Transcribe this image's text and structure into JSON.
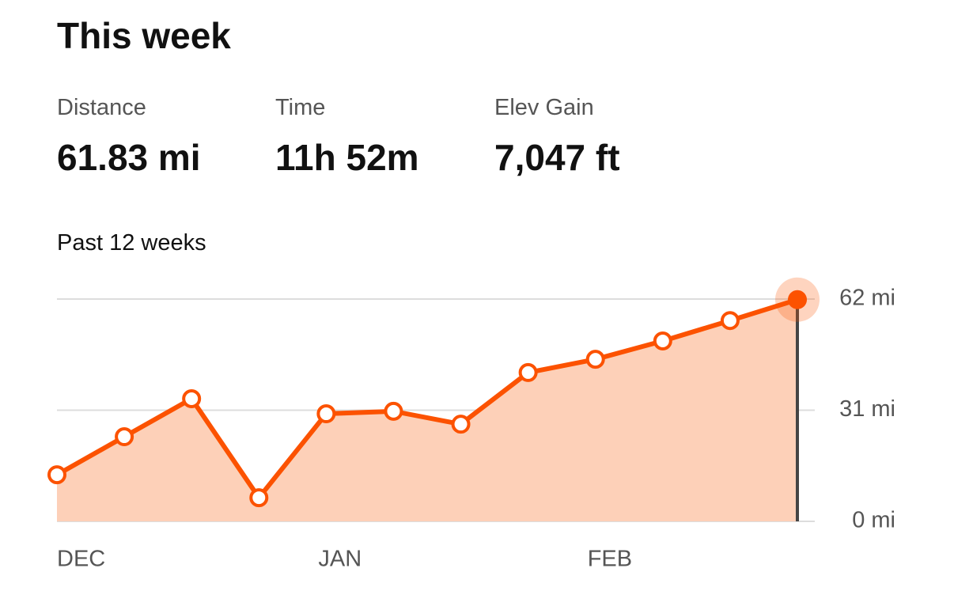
{
  "header": {
    "title": "This week"
  },
  "stats": [
    {
      "label": "Distance",
      "value": "61.83 mi"
    },
    {
      "label": "Time",
      "value": "11h 52m"
    },
    {
      "label": "Elev Gain",
      "value": "7,047 ft"
    }
  ],
  "chart_data": {
    "type": "line",
    "title": "Past 12 weeks",
    "categories": [
      "DEC",
      null,
      null,
      null,
      "JAN",
      null,
      null,
      null,
      "FEB",
      null,
      null,
      null
    ],
    "values": [
      13.0,
      23.6,
      34.2,
      6.6,
      30.0,
      30.7,
      27.1,
      41.5,
      45.2,
      50.3,
      56.0,
      61.83
    ],
    "color": "#fc5200",
    "fill": "#fdd0b8",
    "ylim": [
      0,
      62
    ],
    "yticks": [
      {
        "value": 0,
        "label": "0 mi"
      },
      {
        "value": 31,
        "label": "31 mi"
      },
      {
        "value": 62,
        "label": "62 mi"
      }
    ],
    "grid": true
  }
}
